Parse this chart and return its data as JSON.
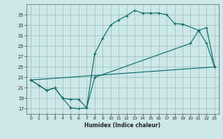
{
  "xlabel": "Humidex (Indice chaleur)",
  "bg_color": "#cce8e8",
  "grid_color": "#99bbbb",
  "line_color": "#006666",
  "xlim": [
    -0.5,
    23.5
  ],
  "ylim": [
    16,
    37
  ],
  "yticks": [
    17,
    19,
    21,
    23,
    25,
    27,
    29,
    31,
    33,
    35
  ],
  "xticks": [
    0,
    1,
    2,
    3,
    4,
    5,
    6,
    7,
    8,
    9,
    10,
    11,
    12,
    13,
    14,
    15,
    16,
    17,
    18,
    19,
    20,
    21,
    22,
    23
  ],
  "curve1_x": [
    0,
    1,
    2,
    3,
    4,
    5,
    6,
    7,
    8,
    9,
    10,
    11,
    12,
    13,
    14,
    15,
    16,
    17,
    18,
    19,
    21,
    22,
    23
  ],
  "curve1_y": [
    22.5,
    21.5,
    20.5,
    21,
    19,
    17.2,
    17.0,
    17.2,
    27.5,
    30.5,
    33.0,
    34.0,
    34.8,
    35.8,
    35.3,
    35.3,
    35.3,
    35.0,
    33.3,
    33.2,
    32.0,
    29.5,
    25.0
  ],
  "curve2_x": [
    0,
    2,
    3,
    4,
    5,
    6,
    7,
    8,
    20,
    21,
    22,
    23
  ],
  "curve2_y": [
    22.5,
    20.5,
    21.0,
    19.0,
    18.8,
    18.8,
    17.2,
    23.0,
    29.5,
    32.0,
    32.5,
    25.0
  ],
  "curve3_x": [
    0,
    23
  ],
  "curve3_y": [
    22.5,
    25.0
  ]
}
